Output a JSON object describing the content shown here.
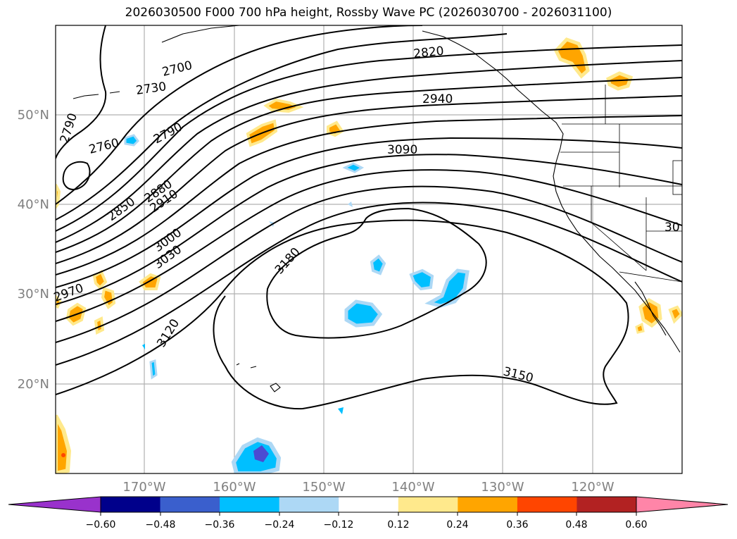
{
  "title": "2026030500 F000 700 hPa height, Rossby Wave PC (2026030700 - 2026031100)",
  "colors": {
    "contour": "#000000",
    "grid": "#b0b0b0",
    "axis_label": "#808080",
    "neg_strong": "#4b4bd2",
    "neg_mid": "#00bfff",
    "neg_weak": "#add8f5",
    "pos_weak": "#ffe98c",
    "pos_mid": "#ffa500",
    "pos_strong": "#ff4500"
  },
  "map": {
    "lat_labels": [
      "50°N",
      "40°N",
      "30°N",
      "20°N"
    ],
    "lon_labels": [
      "170°W",
      "160°W",
      "150°W",
      "140°W",
      "130°W",
      "120°W"
    ],
    "contour_labels": [
      "2700",
      "2730",
      "2790",
      "2760",
      "2790",
      "2850",
      "2880",
      "2910",
      "3000",
      "3030",
      "2970",
      "3120",
      "2820",
      "2940",
      "3090",
      "3180",
      "3150",
      "30"
    ]
  },
  "colorbar": {
    "ticks": [
      "−0.60",
      "−0.48",
      "−0.36",
      "−0.24",
      "−0.12",
      "0.12",
      "0.24",
      "0.36",
      "0.48",
      "0.60"
    ],
    "colors": [
      "#9932cc",
      "#00008b",
      "#3a5fcd",
      "#00bfff",
      "#add8f5",
      "#ffffff",
      "#ffe98c",
      "#ffa500",
      "#ff4500",
      "#b22222",
      "#ff85a8"
    ]
  }
}
